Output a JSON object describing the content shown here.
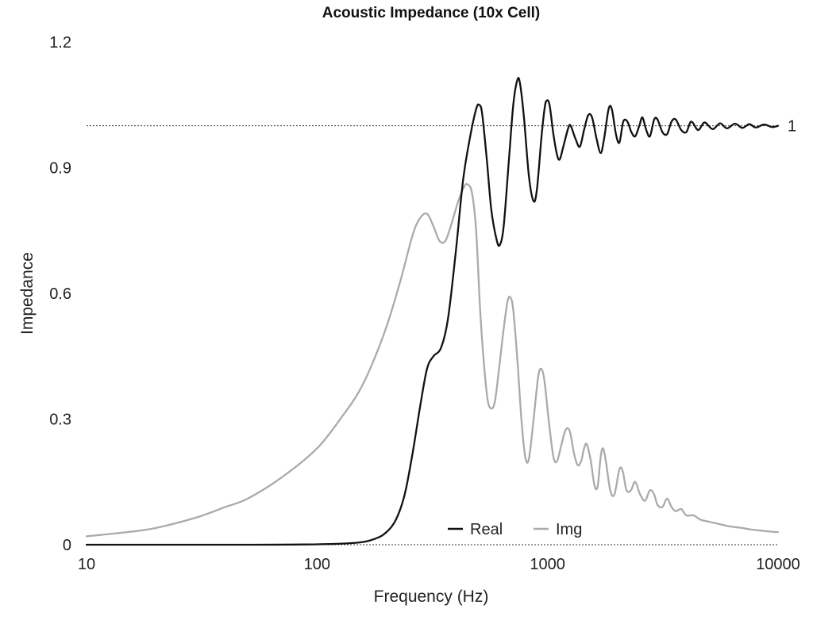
{
  "chart_data": {
    "type": "line",
    "title": "Acoustic Impedance (10x Cell)",
    "xlabel": "Frequency (Hz)",
    "ylabel": "Impedance",
    "x_scale": "log",
    "xlim": [
      10,
      10000
    ],
    "ylim": [
      0,
      1.2
    ],
    "x_ticks": [
      "10",
      "100",
      "1000",
      "10000"
    ],
    "y_ticks": [
      "0",
      "0.3",
      "0.6",
      "0.9",
      "1.2"
    ],
    "grid": false,
    "legend_position": "bottom-center",
    "reference_line": {
      "y": 1,
      "label": "1"
    },
    "zero_line": {
      "y": 0
    },
    "series": [
      {
        "name": "Real",
        "color": "#111111",
        "points": [
          [
            10,
            0.0
          ],
          [
            50,
            0.0
          ],
          [
            100,
            0.001
          ],
          [
            150,
            0.005
          ],
          [
            180,
            0.015
          ],
          [
            200,
            0.03
          ],
          [
            220,
            0.06
          ],
          [
            240,
            0.12
          ],
          [
            260,
            0.22
          ],
          [
            280,
            0.33
          ],
          [
            300,
            0.42
          ],
          [
            320,
            0.45
          ],
          [
            345,
            0.47
          ],
          [
            370,
            0.54
          ],
          [
            400,
            0.7
          ],
          [
            430,
            0.87
          ],
          [
            460,
            0.97
          ],
          [
            490,
            1.04
          ],
          [
            505,
            1.05
          ],
          [
            520,
            1.03
          ],
          [
            545,
            0.92
          ],
          [
            570,
            0.8
          ],
          [
            600,
            0.73
          ],
          [
            620,
            0.715
          ],
          [
            645,
            0.76
          ],
          [
            680,
            0.92
          ],
          [
            710,
            1.05
          ],
          [
            740,
            1.11
          ],
          [
            760,
            1.1
          ],
          [
            790,
            1.02
          ],
          [
            830,
            0.88
          ],
          [
            870,
            0.82
          ],
          [
            900,
            0.85
          ],
          [
            940,
            0.97
          ],
          [
            970,
            1.04
          ],
          [
            990,
            1.06
          ],
          [
            1020,
            1.05
          ],
          [
            1060,
            0.98
          ],
          [
            1100,
            0.93
          ],
          [
            1130,
            0.92
          ],
          [
            1170,
            0.95
          ],
          [
            1230,
            0.995
          ],
          [
            1260,
            1.0
          ],
          [
            1320,
            0.97
          ],
          [
            1380,
            0.95
          ],
          [
            1440,
            0.99
          ],
          [
            1500,
            1.025
          ],
          [
            1560,
            1.02
          ],
          [
            1630,
            0.97
          ],
          [
            1700,
            0.935
          ],
          [
            1760,
            0.97
          ],
          [
            1840,
            1.04
          ],
          [
            1900,
            1.04
          ],
          [
            1980,
            0.98
          ],
          [
            2050,
            0.96
          ],
          [
            2130,
            1.01
          ],
          [
            2220,
            1.01
          ],
          [
            2310,
            0.985
          ],
          [
            2400,
            0.975
          ],
          [
            2500,
            1.0
          ],
          [
            2580,
            1.02
          ],
          [
            2680,
            0.99
          ],
          [
            2780,
            0.975
          ],
          [
            2900,
            1.015
          ],
          [
            3000,
            1.015
          ],
          [
            3150,
            0.985
          ],
          [
            3300,
            0.98
          ],
          [
            3450,
            1.01
          ],
          [
            3600,
            1.015
          ],
          [
            3800,
            0.99
          ],
          [
            4000,
            0.985
          ],
          [
            4200,
            1.01
          ],
          [
            4500,
            0.99
          ],
          [
            4800,
            1.008
          ],
          [
            5200,
            0.992
          ],
          [
            5600,
            1.006
          ],
          [
            6000,
            0.994
          ],
          [
            6500,
            1.005
          ],
          [
            7000,
            0.995
          ],
          [
            7500,
            1.004
          ],
          [
            8000,
            0.996
          ],
          [
            8700,
            1.003
          ],
          [
            9400,
            0.997
          ],
          [
            10000,
            1.0
          ]
        ]
      },
      {
        "name": "Img",
        "color": "#aaaaaa",
        "points": [
          [
            10,
            0.02
          ],
          [
            15,
            0.03
          ],
          [
            20,
            0.04
          ],
          [
            30,
            0.065
          ],
          [
            40,
            0.09
          ],
          [
            50,
            0.11
          ],
          [
            70,
            0.16
          ],
          [
            100,
            0.23
          ],
          [
            130,
            0.31
          ],
          [
            150,
            0.36
          ],
          [
            170,
            0.42
          ],
          [
            200,
            0.52
          ],
          [
            230,
            0.63
          ],
          [
            260,
            0.74
          ],
          [
            280,
            0.78
          ],
          [
            300,
            0.79
          ],
          [
            320,
            0.76
          ],
          [
            340,
            0.725
          ],
          [
            360,
            0.725
          ],
          [
            380,
            0.76
          ],
          [
            410,
            0.82
          ],
          [
            435,
            0.855
          ],
          [
            450,
            0.86
          ],
          [
            470,
            0.84
          ],
          [
            490,
            0.75
          ],
          [
            510,
            0.56
          ],
          [
            530,
            0.43
          ],
          [
            550,
            0.345
          ],
          [
            570,
            0.325
          ],
          [
            590,
            0.34
          ],
          [
            610,
            0.4
          ],
          [
            640,
            0.5
          ],
          [
            670,
            0.58
          ],
          [
            690,
            0.59
          ],
          [
            710,
            0.56
          ],
          [
            740,
            0.44
          ],
          [
            770,
            0.3
          ],
          [
            800,
            0.21
          ],
          [
            830,
            0.205
          ],
          [
            870,
            0.3
          ],
          [
            910,
            0.4
          ],
          [
            940,
            0.42
          ],
          [
            970,
            0.39
          ],
          [
            1010,
            0.3
          ],
          [
            1060,
            0.21
          ],
          [
            1100,
            0.2
          ],
          [
            1150,
            0.24
          ],
          [
            1200,
            0.275
          ],
          [
            1250,
            0.27
          ],
          [
            1300,
            0.22
          ],
          [
            1350,
            0.19
          ],
          [
            1400,
            0.2
          ],
          [
            1440,
            0.23
          ],
          [
            1480,
            0.24
          ],
          [
            1540,
            0.2
          ],
          [
            1600,
            0.14
          ],
          [
            1650,
            0.14
          ],
          [
            1700,
            0.21
          ],
          [
            1740,
            0.23
          ],
          [
            1790,
            0.2
          ],
          [
            1870,
            0.13
          ],
          [
            1950,
            0.12
          ],
          [
            2050,
            0.18
          ],
          [
            2120,
            0.175
          ],
          [
            2200,
            0.13
          ],
          [
            2300,
            0.13
          ],
          [
            2400,
            0.15
          ],
          [
            2520,
            0.12
          ],
          [
            2650,
            0.105
          ],
          [
            2780,
            0.13
          ],
          [
            2900,
            0.12
          ],
          [
            3000,
            0.095
          ],
          [
            3150,
            0.09
          ],
          [
            3300,
            0.11
          ],
          [
            3450,
            0.09
          ],
          [
            3600,
            0.08
          ],
          [
            3800,
            0.085
          ],
          [
            4000,
            0.07
          ],
          [
            4300,
            0.07
          ],
          [
            4600,
            0.06
          ],
          [
            5000,
            0.055
          ],
          [
            5500,
            0.05
          ],
          [
            6000,
            0.045
          ],
          [
            6500,
            0.042
          ],
          [
            7000,
            0.04
          ],
          [
            7500,
            0.037
          ],
          [
            8000,
            0.035
          ],
          [
            9000,
            0.032
          ],
          [
            10000,
            0.03
          ]
        ]
      }
    ]
  }
}
